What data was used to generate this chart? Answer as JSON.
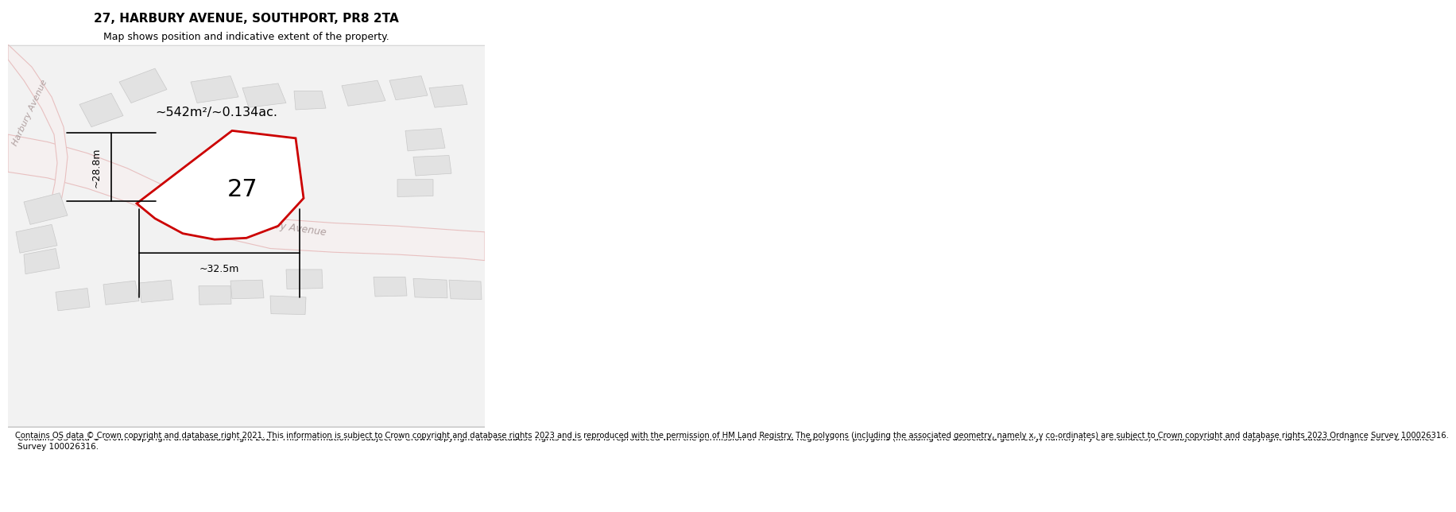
{
  "title": "27, HARBURY AVENUE, SOUTHPORT, PR8 2TA",
  "subtitle": "Map shows position and indicative extent of the property.",
  "footer": "Contains OS data © Crown copyright and database right 2021. This information is subject to Crown copyright and database rights 2023 and is reproduced with the permission of HM Land Registry. The polygons (including the associated geometry, namely x, y co-ordinates) are subject to Crown copyright and database rights 2023 Ordnance Survey 100026316.",
  "area_label": "~542m²/~0.134ac.",
  "number_label": "27",
  "dim_vertical": "~28.8m",
  "dim_horizontal": "~32.5m",
  "street_label": "Harbury Avenue",
  "street_label_left": "Harbury Avenue",
  "bg_color": "#f5f5f5",
  "map_bg": "#f0f0f0",
  "road_color": "#e8c8c8",
  "road_fill": "#ffffff",
  "building_color": "#d8d8d8",
  "building_edge": "#cccccc",
  "plot_fill": "#ffffff",
  "plot_edge": "#cc0000",
  "title_fontsize": 11,
  "subtitle_fontsize": 9,
  "footer_fontsize": 7.5
}
